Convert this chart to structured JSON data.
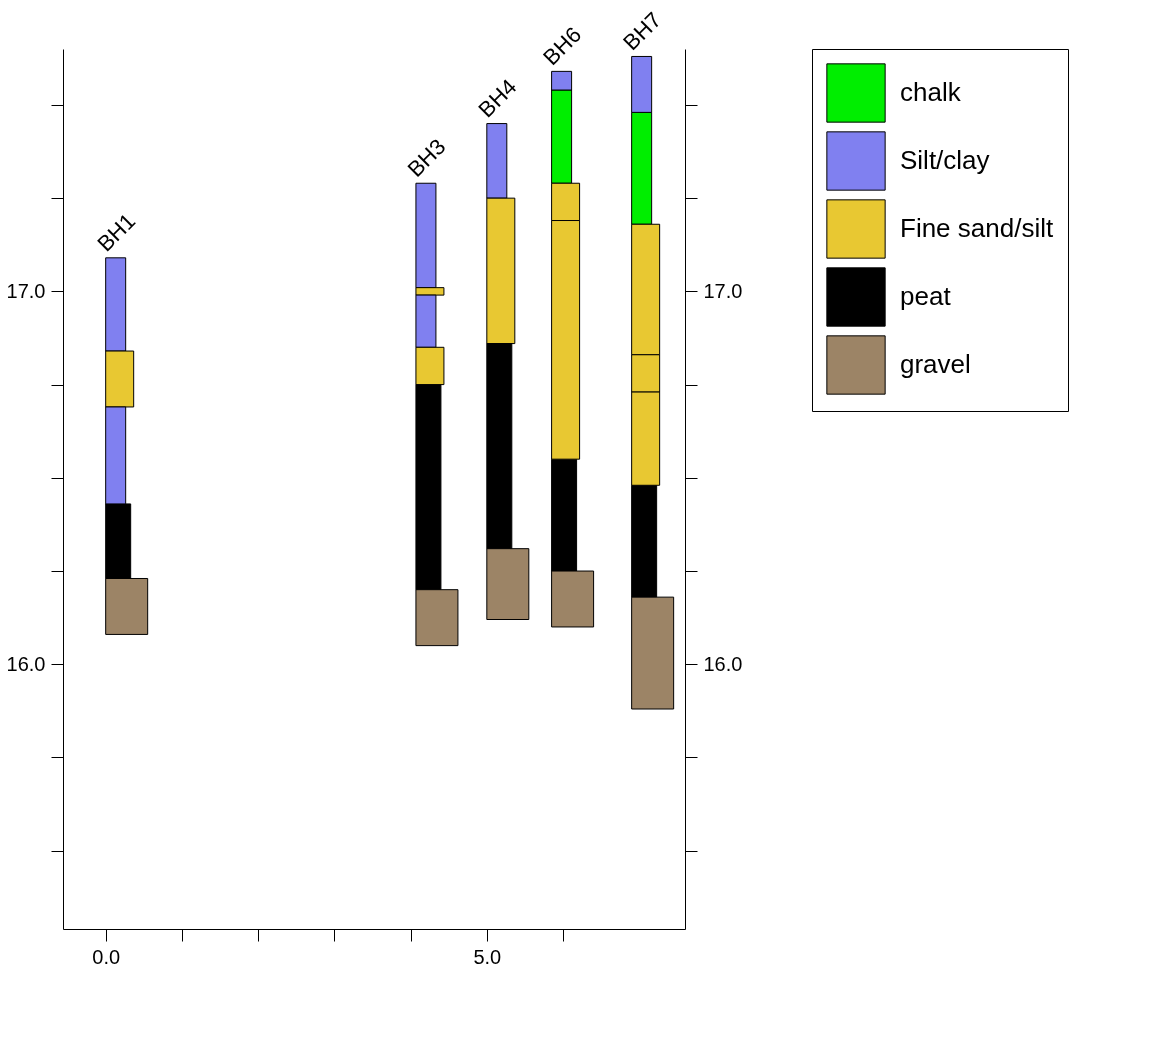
{
  "chart_data": {
    "type": "bar",
    "xlim": [
      -0.56,
      7.6
    ],
    "xticks": [
      {
        "value": 0,
        "label": "0.0"
      },
      {
        "value": 1,
        "label": null
      },
      {
        "value": 2,
        "label": null
      },
      {
        "value": 3,
        "label": null
      },
      {
        "value": 4,
        "label": null
      },
      {
        "value": 5,
        "label": "5.0"
      },
      {
        "value": 6,
        "label": null
      }
    ],
    "ylim": [
      15.29,
      17.65
    ],
    "yticks": [
      {
        "value": 15.5,
        "label": null
      },
      {
        "value": 15.75,
        "label": null
      },
      {
        "value": 16,
        "label": "16.0"
      },
      {
        "value": 16.25,
        "label": null
      },
      {
        "value": 16.5,
        "label": null
      },
      {
        "value": 16.75,
        "label": null
      },
      {
        "value": 17,
        "label": "17.0"
      },
      {
        "value": 17.25,
        "label": null
      },
      {
        "value": 17.5,
        "label": null
      }
    ],
    "y2lim": [
      15.29,
      17.65
    ],
    "y2ticks": [
      {
        "value": 15.5,
        "label": null
      },
      {
        "value": 15.75,
        "label": null
      },
      {
        "value": 16,
        "label": "16.0"
      },
      {
        "value": 16.25,
        "label": null
      },
      {
        "value": 16.5,
        "label": null
      },
      {
        "value": 16.75,
        "label": null
      },
      {
        "value": 17,
        "label": "17.0"
      },
      {
        "value": 17.25,
        "label": null
      },
      {
        "value": 17.5,
        "label": null
      }
    ],
    "grid": false,
    "legend": "right",
    "series": [
      {
        "name": "chalk",
        "color": "#00ee00",
        "x": [
          5.85,
          6.9
        ],
        "values": [
          0.25,
          0.3
        ],
        "base": [
          17.29,
          17.18
        ]
      },
      {
        "name": "Silt/clay",
        "color": "#8080f0",
        "x": [
          0,
          4.07,
          5.0,
          5.85,
          6.9
        ],
        "values": [
          0.25,
          0.28,
          0.2,
          0.05,
          0.15
        ],
        "base": [
          16.84,
          17.01,
          17.25,
          17.54,
          17.48
        ]
      },
      {
        "name": "Fine sand/silt",
        "color": "#e8c832",
        "x": [
          0,
          4.07,
          5.0,
          5.85,
          6.9
        ],
        "values": [
          0.15,
          0.02,
          0.39,
          0.1,
          0.35
        ],
        "base": [
          16.69,
          16.99,
          16.86,
          17.19,
          16.83
        ]
      },
      {
        "name": "peat",
        "color": "#000000",
        "x": [
          0,
          4.07,
          5.0,
          5.85,
          6.9
        ],
        "values": [
          0.2,
          0.55,
          0.55,
          0.3,
          0.3
        ],
        "base": [
          16.23,
          16.2,
          16.31,
          16.25,
          16.18
        ]
      },
      {
        "name": "gravel",
        "color": "#9c8466",
        "x": [
          0,
          4.07,
          5.0,
          5.85,
          6.9
        ],
        "values": [
          0.15,
          0.15,
          0.19,
          0.15,
          0.3
        ],
        "base": [
          16.08,
          16.05,
          16.12,
          16.1,
          15.88
        ]
      },
      {
        "color": "#8080f0",
        "x": [
          0,
          4.07
        ],
        "values": [
          0.26,
          0.14
        ],
        "base": [
          16.43,
          16.85
        ]
      },
      {
        "color": "#e8c832",
        "x": [
          4.07,
          5.85,
          6.9
        ],
        "values": [
          0.1,
          0.64,
          0.1
        ],
        "base": [
          16.75,
          16.55,
          16.73
        ]
      },
      {
        "color": "#e8c832",
        "x": [
          6.9
        ],
        "values": [
          0.25
        ],
        "base": [
          16.48
        ]
      }
    ],
    "annotations": [
      {
        "text": "BH1",
        "x": 0,
        "y": 17.09
      },
      {
        "text": "BH3",
        "x": 4.07,
        "y": 17.29
      },
      {
        "text": "BH4",
        "x": 5.0,
        "y": 17.45
      },
      {
        "text": "BH6",
        "x": 5.85,
        "y": 17.59
      },
      {
        "text": "BH7",
        "x": 6.9,
        "y": 17.63
      }
    ]
  }
}
